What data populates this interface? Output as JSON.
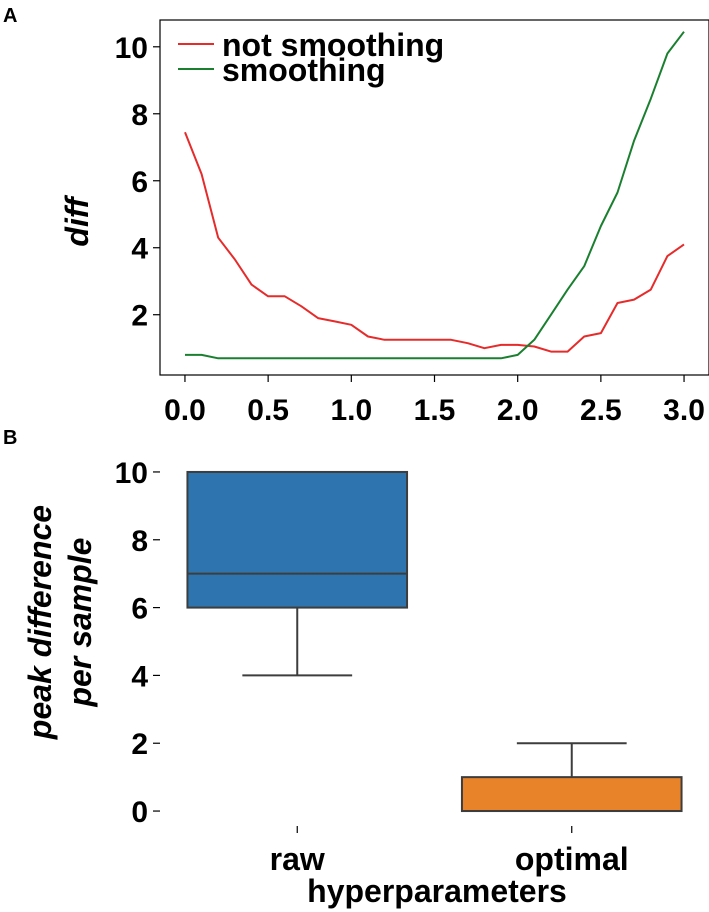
{
  "chart_data": [
    {
      "panel": "A",
      "type": "line",
      "title": "",
      "xlabel": "",
      "ylabel": "diff",
      "xlim": [
        -0.15,
        3.15
      ],
      "ylim": [
        0.2,
        10.8
      ],
      "xticks": [
        "0.0",
        "0.5",
        "1.0",
        "1.5",
        "2.0",
        "2.5",
        "3.0"
      ],
      "xtick_values": [
        0,
        0.5,
        1.0,
        1.5,
        2.0,
        2.5,
        3.0
      ],
      "yticks": [
        "2",
        "4",
        "6",
        "8",
        "10"
      ],
      "ytick_values": [
        2,
        4,
        6,
        8,
        10
      ],
      "legend_position": "top-left",
      "series": [
        {
          "name": "not smoothing",
          "color": "#e62b2b",
          "x": [
            0.0,
            0.1,
            0.2,
            0.3,
            0.4,
            0.5,
            0.6,
            0.7,
            0.8,
            0.9,
            1.0,
            1.1,
            1.2,
            1.3,
            1.4,
            1.5,
            1.6,
            1.7,
            1.8,
            1.9,
            2.0,
            2.1,
            2.2,
            2.3,
            2.4,
            2.5,
            2.6,
            2.7,
            2.8,
            2.9,
            3.0
          ],
          "values": [
            7.45,
            6.2,
            4.3,
            3.65,
            2.9,
            2.55,
            2.55,
            2.25,
            1.9,
            1.8,
            1.7,
            1.35,
            1.25,
            1.25,
            1.25,
            1.25,
            1.25,
            1.15,
            1.0,
            1.1,
            1.1,
            1.05,
            0.9,
            0.9,
            1.35,
            1.45,
            2.35,
            2.45,
            2.75,
            3.75,
            4.1
          ]
        },
        {
          "name": "smoothing",
          "color": "#1a8030",
          "x": [
            0.0,
            0.1,
            0.2,
            0.3,
            0.4,
            0.5,
            0.6,
            0.7,
            0.8,
            0.9,
            1.0,
            1.1,
            1.2,
            1.3,
            1.4,
            1.5,
            1.6,
            1.7,
            1.8,
            1.9,
            2.0,
            2.1,
            2.2,
            2.3,
            2.4,
            2.5,
            2.6,
            2.7,
            2.8,
            2.9,
            3.0
          ],
          "values": [
            0.8,
            0.8,
            0.7,
            0.7,
            0.7,
            0.7,
            0.7,
            0.7,
            0.7,
            0.7,
            0.7,
            0.7,
            0.7,
            0.7,
            0.7,
            0.7,
            0.7,
            0.7,
            0.7,
            0.7,
            0.8,
            1.25,
            2.0,
            2.75,
            3.45,
            4.65,
            5.65,
            7.2,
            8.45,
            9.8,
            10.45
          ]
        }
      ]
    },
    {
      "panel": "B",
      "type": "box",
      "title": "",
      "xlabel": "hyperparameters",
      "ylabel_lines": [
        "peak difference",
        "per sample"
      ],
      "ylim": [
        -0.5,
        10.5
      ],
      "yticks": [
        "0",
        "2",
        "4",
        "6",
        "8",
        "10"
      ],
      "ytick_values": [
        0,
        2,
        4,
        6,
        8,
        10
      ],
      "categories": [
        "raw",
        "optimal"
      ],
      "boxes": [
        {
          "category": "raw",
          "color": "#2e75b0",
          "whisker_low": 4,
          "q1": 6,
          "median": 7,
          "q3": 10,
          "whisker_high": 10
        },
        {
          "category": "optimal",
          "color": "#e8832a",
          "whisker_low": 0,
          "q1": 0,
          "median": 0,
          "q3": 1,
          "whisker_high": 2
        }
      ]
    }
  ]
}
